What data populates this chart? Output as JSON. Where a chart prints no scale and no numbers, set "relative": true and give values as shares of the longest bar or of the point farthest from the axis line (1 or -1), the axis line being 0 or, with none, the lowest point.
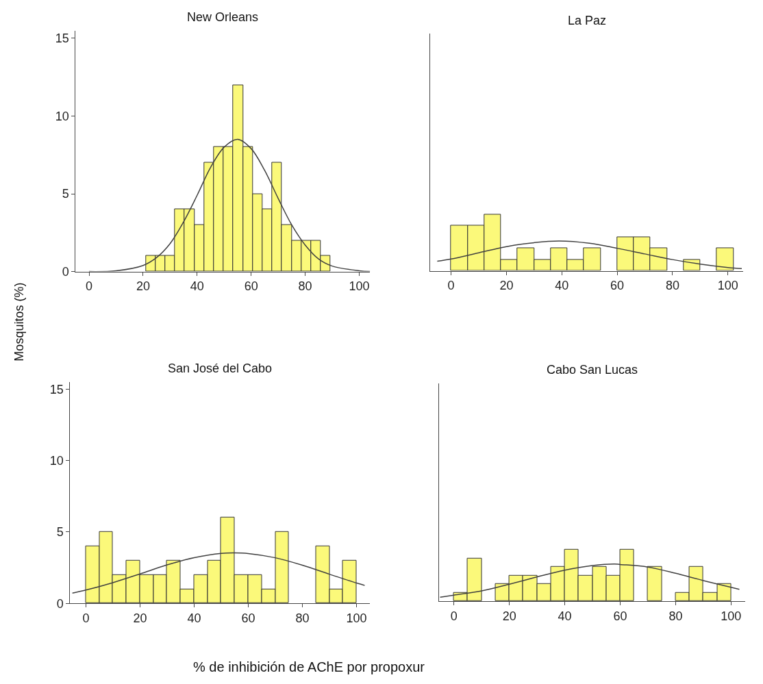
{
  "chart_data": [
    {
      "type": "histogram",
      "title": "New Orleans",
      "ylabel": "Mosquitos (%)",
      "color": "#fbf97a",
      "bins": [
        21,
        24.6,
        28.2,
        31.8,
        35.4,
        39,
        42.6,
        46.2,
        49.8,
        53.4,
        57,
        60.6,
        64.2,
        67.8,
        71.4,
        75,
        78.6,
        82.2,
        85.8,
        89.4
      ],
      "values": [
        1,
        1,
        1,
        4,
        4,
        3,
        7,
        8,
        8,
        12,
        8,
        5,
        4,
        7,
        3,
        2,
        2,
        2,
        1
      ],
      "series": [
        {
          "type": "line",
          "color": "#404040",
          "x": [
            0,
            10,
            20,
            25,
            30,
            35,
            40,
            45,
            50,
            55,
            60,
            65,
            70,
            75,
            80,
            85,
            90,
            100,
            104
          ],
          "values": [
            0.0,
            0.05,
            0.39,
            0.9,
            1.8,
            3.2,
            4.9,
            6.7,
            8.0,
            8.5,
            7.9,
            6.5,
            4.7,
            3.0,
            1.7,
            0.8,
            0.35,
            0.05,
            0.0
          ]
        }
      ],
      "xlim": [
        -5,
        104
      ],
      "xticks": [
        0,
        20,
        40,
        60,
        80,
        100
      ],
      "ylim": [
        0,
        15.5
      ],
      "yticks": [
        0,
        5,
        10,
        15
      ]
    },
    {
      "type": "histogram",
      "title": "La Paz",
      "relative": true,
      "color": "#fbf97a",
      "bins": [
        0,
        6,
        12,
        18,
        24,
        30,
        36,
        42,
        48,
        54,
        60,
        66,
        72,
        78,
        84,
        90,
        96,
        102
      ],
      "values": [
        0.8,
        0.8,
        1,
        0.2,
        0.4,
        0.2,
        0.4,
        0.2,
        0.4,
        0,
        0.6,
        0.6,
        0.4,
        0,
        0.2,
        0,
        0.4
      ],
      "series": [
        {
          "type": "line",
          "color": "#404040",
          "x": [
            -5,
            0,
            10,
            20,
            30,
            39,
            50,
            60,
            70,
            80,
            90,
            100,
            105
          ],
          "values": [
            0.17,
            0.21,
            0.32,
            0.43,
            0.5,
            0.53,
            0.49,
            0.4,
            0.3,
            0.2,
            0.12,
            0.06,
            0.04
          ]
        }
      ],
      "xlim": [
        -7.5,
        105.5
      ],
      "xticks": [
        0,
        20,
        40,
        60,
        80,
        100
      ]
    },
    {
      "type": "histogram",
      "title": "San José del Cabo",
      "xlabel": "% de inhibición de AChE por propoxur",
      "color": "#fbf97a",
      "bins": [
        0,
        5,
        10,
        15,
        20,
        25,
        30,
        35,
        40,
        45,
        50,
        55,
        60,
        65,
        70,
        75,
        80,
        85,
        90,
        95,
        100
      ],
      "values": [
        4,
        5,
        2,
        3,
        2,
        2,
        3,
        1,
        2,
        3,
        6,
        2,
        2,
        1,
        5,
        0,
        0,
        4,
        1,
        3
      ],
      "series": [
        {
          "type": "line",
          "color": "#404040",
          "x": [
            -5,
            0,
            10,
            20,
            30,
            40,
            50,
            55,
            60,
            70,
            80,
            90,
            100,
            103
          ],
          "values": [
            0.72,
            0.93,
            1.45,
            2.06,
            2.69,
            3.2,
            3.5,
            3.53,
            3.49,
            3.19,
            2.67,
            2.04,
            1.42,
            1.26
          ]
        }
      ],
      "xlim": [
        -5.8,
        105
      ],
      "xticks": [
        0,
        20,
        40,
        60,
        80,
        100
      ],
      "ylim": [
        0,
        15.5
      ],
      "yticks": [
        0,
        5,
        10,
        15
      ]
    },
    {
      "type": "histogram",
      "title": "Cabo San Lucas",
      "relative": true,
      "color": "#fbf97a",
      "bins": [
        0,
        5,
        10,
        15,
        20,
        25,
        30,
        35,
        40,
        45,
        50,
        55,
        60,
        65,
        70,
        75,
        80,
        85,
        90,
        95,
        100
      ],
      "values": [
        0.17,
        0.83,
        0,
        0.33,
        0.5,
        0.5,
        0.33,
        0.67,
        1,
        0.5,
        0.67,
        0.5,
        1,
        0,
        0.67,
        0,
        0.17,
        0.67,
        0.17,
        0.33
      ],
      "series": [
        {
          "type": "line",
          "color": "#404040",
          "x": [
            -5,
            0,
            10,
            20,
            30,
            40,
            50,
            58,
            60,
            70,
            80,
            90,
            100,
            103
          ],
          "values": [
            0.08,
            0.12,
            0.2,
            0.33,
            0.47,
            0.6,
            0.69,
            0.72,
            0.71,
            0.66,
            0.54,
            0.4,
            0.27,
            0.23
          ]
        }
      ],
      "xlim": [
        -5.5,
        105.2
      ],
      "xticks": [
        0,
        20,
        40,
        60,
        80,
        100
      ]
    }
  ]
}
